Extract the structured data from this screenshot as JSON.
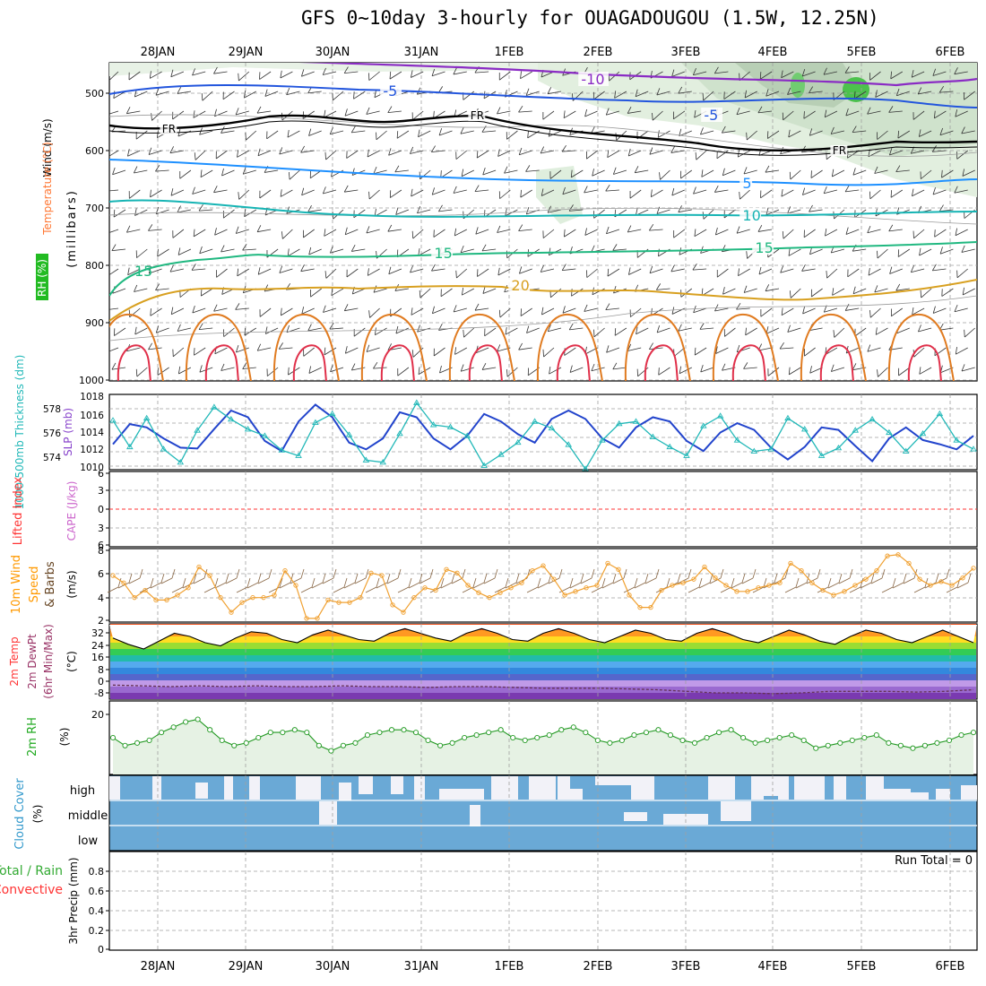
{
  "title": "GFS 0~10day 3-hourly for OUAGADOUGOU (1.5W, 12.25N)",
  "dates": [
    "28JAN",
    "29JAN",
    "30JAN",
    "31JAN",
    "1FEB",
    "2FEB",
    "3FEB",
    "4FEB",
    "5FEB",
    "6FEB"
  ],
  "colors": {
    "frame": "#000000",
    "grid": "#999999",
    "green_label": "#33aa33",
    "orange": "#ff9900",
    "red": "#ff2222",
    "cyan": "#00aaaa",
    "blue": "#2244cc",
    "violet": "#cc66cc",
    "cloud": "#6aa9d6",
    "cloud_clear": "#f2f2f8",
    "rh_fill": "#e6f2e4"
  },
  "panels": {
    "upper": {
      "axis_labels": [
        "Wind (m/s)",
        "Temperature (°C)",
        "RH (%)",
        "(millibars)"
      ],
      "pressure_ticks": [
        500,
        600,
        700,
        800,
        900,
        1000
      ],
      "contour_labels": [
        "-10",
        "-5",
        "-5",
        "FR",
        "FR",
        "FR",
        "5",
        "10",
        "15",
        "15",
        "20"
      ]
    },
    "slp": {
      "axis_labels": [
        "1000-500mb Thickness (dm)",
        "SLP (mb)"
      ],
      "thickness_ticks": [
        "578",
        "576",
        "574"
      ],
      "slp_ticks": [
        "1018",
        "1016",
        "1014",
        "1012",
        "1010"
      ]
    },
    "lifted": {
      "axis_labels": [
        "Lifted Index",
        "CAPE (J/kg)"
      ],
      "ticks": [
        "6",
        "3",
        "0",
        "3",
        "6"
      ]
    },
    "wind10": {
      "axis_labels": [
        "10m Wind",
        "Speed",
        "& Barbs",
        "(m/s)"
      ],
      "ticks": [
        "8",
        "6",
        "4",
        "2"
      ]
    },
    "temp": {
      "axis_labels": [
        "2m Temp",
        "2m DewPt",
        "(6hr Min/Max)",
        "(°C)"
      ],
      "ticks": [
        "32",
        "24",
        "16",
        "8",
        "0",
        "-8"
      ]
    },
    "rh": {
      "axis_labels": [
        "2m RH",
        "(%)"
      ],
      "ticks": [
        "20"
      ]
    },
    "cloud": {
      "axis_labels": [
        "Cloud Cover",
        "(%)"
      ],
      "rows": [
        "high",
        "middle",
        "low"
      ]
    },
    "precip": {
      "axis_labels": [
        "Total / Rain",
        "Convective",
        "3hr Precip (mm)"
      ],
      "ticks": [
        "0.8",
        "0.6",
        "0.4",
        "0.2",
        "0"
      ],
      "run_total": "Run Total = 0"
    }
  },
  "chart_data": [
    {
      "type": "line",
      "title": "1000-500mb Thickness / SLP",
      "series": [
        {
          "name": "SLP (mb)",
          "values": [
            1012.8,
            1015.2,
            1014.8,
            1013.5,
            1012.4,
            1012.3,
            1014.6,
            1016.8,
            1016.0,
            1013.2,
            1012.0,
            1015.5,
            1017.5,
            1016.0,
            1013.0,
            1012.2,
            1013.5,
            1016.6,
            1016.0,
            1013.5,
            1012.2,
            1013.8,
            1016.4,
            1015.5,
            1014.0,
            1013.0,
            1015.8,
            1016.8,
            1015.8,
            1013.5,
            1012.4,
            1014.8,
            1016.0,
            1015.5,
            1013.2,
            1012.0,
            1014.2,
            1015.3,
            1014.5,
            1012.4,
            1011.0,
            1012.5,
            1014.8,
            1014.5,
            1012.6,
            1010.8,
            1013.5,
            1014.8,
            1013.3,
            1012.8,
            1012.2,
            1013.8
          ]
        },
        {
          "name": "1000-500mb Thickness (dm)",
          "values": [
            576.8,
            574.4,
            577.0,
            574.2,
            573.0,
            575.9,
            578.0,
            576.9,
            576.0,
            575.4,
            574.1,
            573.6,
            576.6,
            577.4,
            575.5,
            573.2,
            573.0,
            575.6,
            578.4,
            576.4,
            576.2,
            575.4,
            572.7,
            573.7,
            574.8,
            576.7,
            576.1,
            574.6,
            572.4,
            575.0,
            576.5,
            576.7,
            575.3,
            574.4,
            573.6,
            576.3,
            577.2,
            575.0,
            574.0,
            574.2,
            577.0,
            576.0,
            573.6,
            574.3,
            575.9,
            576.9,
            575.7,
            574.0,
            575.6,
            577.4,
            575.0,
            574.2
          ]
        }
      ]
    },
    {
      "type": "line",
      "title": "10m Wind Speed",
      "ylim": [
        2,
        8
      ],
      "values": [
        5.8,
        5.2,
        4.0,
        4.6,
        3.8,
        3.8,
        4.2,
        4.8,
        6.5,
        5.8,
        4.0,
        2.8,
        3.6,
        4.0,
        4.0,
        4.2,
        6.2,
        5.0,
        2.3,
        2.3,
        3.8,
        3.6,
        3.6,
        4.0,
        6.0,
        5.8,
        3.4,
        2.8,
        4.0,
        4.8,
        4.6,
        6.3,
        6.0,
        5.0,
        4.4,
        4.0,
        4.4,
        4.8,
        5.2,
        6.2,
        6.6,
        5.5,
        4.2,
        4.5,
        4.8,
        5.0,
        6.8,
        6.3,
        4.2,
        3.2,
        3.2,
        4.6,
        5.0,
        5.2,
        5.5,
        6.5,
        5.6,
        5.0,
        4.5,
        4.5,
        4.8,
        5.0,
        5.2,
        6.8,
        6.2,
        5.2,
        4.6,
        4.2,
        4.5,
        5.0,
        5.5,
        6.2,
        7.4,
        7.5,
        6.8,
        5.5,
        5.0,
        5.3,
        5.0,
        5.6,
        6.4
      ]
    },
    {
      "type": "area",
      "title": "2m Temp",
      "ylim": [
        -12,
        36
      ],
      "values": [
        27,
        23,
        20,
        25,
        30,
        28,
        24,
        22,
        27,
        31,
        30,
        26,
        24,
        29,
        32,
        29,
        26,
        25,
        30,
        33,
        30,
        27,
        25,
        30,
        33,
        30,
        26,
        25,
        30,
        33,
        30,
        26,
        24,
        28,
        32,
        30,
        26,
        25,
        30,
        33,
        30,
        26,
        24,
        28,
        32,
        29,
        25,
        23,
        28,
        32,
        30,
        26,
        24,
        28,
        32,
        28,
        24
      ]
    },
    {
      "type": "line",
      "title": "2m DewPt",
      "ylim": [
        -12,
        36
      ],
      "values": [
        -3,
        -3.5,
        -4,
        -3.5,
        -4,
        -3.5,
        -4,
        -4,
        -3.5,
        -4,
        -4,
        -4.5,
        -4,
        -4,
        -4.5,
        -5,
        -5,
        -5,
        -5.5,
        -6,
        -7,
        -8,
        -8,
        -8.5,
        -8,
        -7,
        -7,
        -7,
        -7.5,
        -7,
        -6
      ]
    },
    {
      "type": "line",
      "title": "2m RH",
      "ylim": [
        0,
        28
      ],
      "values": [
        14,
        11,
        12,
        13,
        16,
        18,
        20,
        21,
        17,
        13,
        11,
        12,
        14,
        16,
        16,
        17,
        16,
        11,
        9,
        11,
        12,
        15,
        16,
        17,
        17,
        16,
        13,
        11,
        12,
        14,
        15,
        16,
        17,
        14,
        13,
        14,
        15,
        17,
        18,
        16,
        13,
        12,
        13,
        15,
        16,
        17,
        15,
        13,
        12,
        14,
        16,
        17,
        14,
        12,
        13,
        14,
        15,
        13,
        10,
        11,
        12,
        13,
        14,
        15,
        12,
        11,
        10,
        11,
        12,
        13,
        15,
        16
      ]
    }
  ]
}
